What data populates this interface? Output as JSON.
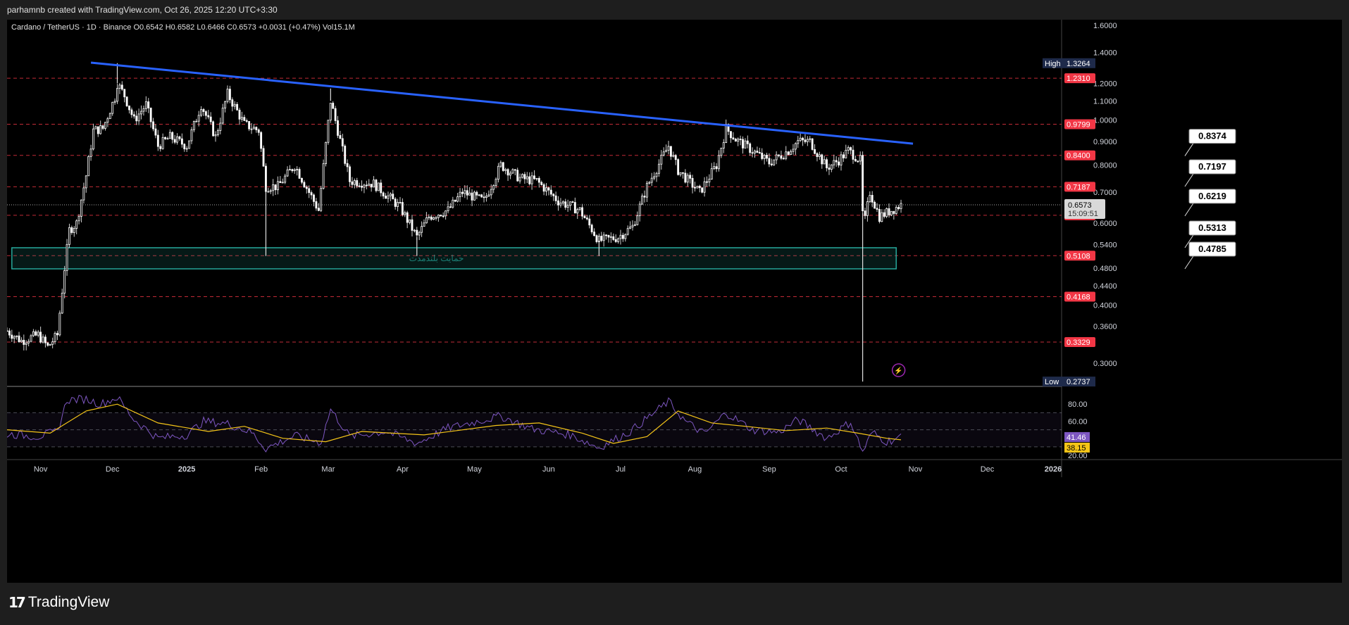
{
  "header": {
    "attribution": "parhamnb created with TradingView.com, Oct 26, 2025 12:20 UTC+3:30"
  },
  "legend": {
    "text": "Cardano / TetherUS · 1D · Binance  O0.6542  H0.6582  L0.6466  C0.6573  +0.0031 (+0.47%)  Vol15.1M"
  },
  "footer": {
    "brand": "TradingView",
    "logo_glyph": "17"
  },
  "zone_label": "حمایت بلندمدت",
  "colors": {
    "up": "#ffffff",
    "down": "#ffffff",
    "trendline": "#2962ff",
    "level": "#f23645",
    "zone": "#26a69a",
    "rsi": "#7e57c2",
    "rsi_ma": "#f5c518",
    "grid_axis": "#d1d4dc"
  },
  "chart_data": [
    {
      "type": "candlestick",
      "title": "Cardano / TetherUS · 1D · Binance",
      "ohlc_last": {
        "open": 0.6542,
        "high": 0.6582,
        "low": 0.6466,
        "close": 0.6573,
        "change": "+0.0031 (+0.47%)",
        "volume": "15.1M"
      },
      "x_ticks": [
        "Nov",
        "Dec",
        "2025",
        "Feb",
        "Mar",
        "Apr",
        "May",
        "Jun",
        "Jul",
        "Aug",
        "Sep",
        "Oct",
        "Nov",
        "Dec",
        "2026"
      ],
      "x_range": [
        "2024-10-18",
        "2026-01-01"
      ],
      "y_scale": "log",
      "y_ticks": [
        "1.6000",
        "1.4000",
        "1.2000",
        "1.1000",
        "1.0000",
        "0.9000",
        "0.8000",
        "0.7000",
        "0.6000",
        "0.5400",
        "0.4800",
        "0.4400",
        "0.4000",
        "0.3600",
        "0.3000"
      ],
      "ylim": [
        0.27,
        1.6
      ],
      "high_label": {
        "text": "High",
        "value": "1.3264"
      },
      "low_label": {
        "text": "Low",
        "value": "0.2737"
      },
      "price_label": {
        "value": "0.6573",
        "countdown": "15:09:51"
      },
      "horizontal_levels": [
        "1.2310",
        "0.9799",
        "0.8400",
        "0.7187",
        "0.6239",
        "0.5108",
        "0.4168",
        "0.3329"
      ],
      "callouts": [
        "0.8374",
        "0.7197",
        "0.6219",
        "0.5313",
        "0.4785"
      ],
      "trendline": {
        "from": {
          "date": "2024-11-22",
          "price": 1.33
        },
        "to": {
          "date": "2025-10-31",
          "price": 0.89
        }
      },
      "support_zone": {
        "from_date": "2024-10-20",
        "to_date": "2025-10-24",
        "upper": 0.5313,
        "lower": 0.4785
      },
      "price_path": [
        [
          "2024-10-18",
          0.352
        ],
        [
          "2024-10-24",
          0.335
        ],
        [
          "2024-10-31",
          0.345
        ],
        [
          "2024-11-04",
          0.325
        ],
        [
          "2024-11-08",
          0.345
        ],
        [
          "2024-11-11",
          0.48
        ],
        [
          "2024-11-13",
          0.58
        ],
        [
          "2024-11-16",
          0.6
        ],
        [
          "2024-11-20",
          0.76
        ],
        [
          "2024-11-23",
          0.95
        ],
        [
          "2024-11-27",
          0.96
        ],
        [
          "2024-12-02",
          1.12
        ],
        [
          "2024-12-03",
          1.2
        ],
        [
          "2024-12-06",
          1.13
        ],
        [
          "2024-12-10",
          1.0
        ],
        [
          "2024-12-15",
          1.08
        ],
        [
          "2024-12-20",
          0.88
        ],
        [
          "2024-12-25",
          0.92
        ],
        [
          "2025-01-01",
          0.88
        ],
        [
          "2025-01-07",
          1.08
        ],
        [
          "2025-01-13",
          0.92
        ],
        [
          "2025-01-18",
          1.14
        ],
        [
          "2025-01-25",
          0.98
        ],
        [
          "2025-01-31",
          0.95
        ],
        [
          "2025-02-03",
          0.72
        ],
        [
          "2025-02-08",
          0.72
        ],
        [
          "2025-02-15",
          0.8
        ],
        [
          "2025-02-25",
          0.64
        ],
        [
          "2025-03-02",
          1.1
        ],
        [
          "2025-03-05",
          0.95
        ],
        [
          "2025-03-10",
          0.74
        ],
        [
          "2025-03-20",
          0.73
        ],
        [
          "2025-03-31",
          0.65
        ],
        [
          "2025-04-07",
          0.56
        ],
        [
          "2025-04-12",
          0.62
        ],
        [
          "2025-04-20",
          0.64
        ],
        [
          "2025-04-26",
          0.7
        ],
        [
          "2025-05-05",
          0.67
        ],
        [
          "2025-05-12",
          0.8
        ],
        [
          "2025-05-20",
          0.75
        ],
        [
          "2025-05-27",
          0.74
        ],
        [
          "2025-06-05",
          0.67
        ],
        [
          "2025-06-14",
          0.64
        ],
        [
          "2025-06-22",
          0.55
        ],
        [
          "2025-06-30",
          0.56
        ],
        [
          "2025-07-06",
          0.59
        ],
        [
          "2025-07-12",
          0.72
        ],
        [
          "2025-07-21",
          0.88
        ],
        [
          "2025-07-25",
          0.78
        ],
        [
          "2025-08-03",
          0.7
        ],
        [
          "2025-08-10",
          0.8
        ],
        [
          "2025-08-14",
          0.96
        ],
        [
          "2025-08-18",
          0.91
        ],
        [
          "2025-08-25",
          0.86
        ],
        [
          "2025-09-01",
          0.81
        ],
        [
          "2025-09-09",
          0.86
        ],
        [
          "2025-09-13",
          0.9
        ],
        [
          "2025-09-18",
          0.9
        ],
        [
          "2025-09-25",
          0.79
        ],
        [
          "2025-09-30",
          0.82
        ],
        [
          "2025-10-04",
          0.86
        ],
        [
          "2025-10-09",
          0.82
        ],
        [
          "2025-10-10",
          0.63
        ],
        [
          "2025-10-11",
          0.61
        ],
        [
          "2025-10-13",
          0.7
        ],
        [
          "2025-10-17",
          0.62
        ],
        [
          "2025-10-22",
          0.64
        ],
        [
          "2025-10-26",
          0.6573
        ]
      ],
      "wick_extremes": [
        {
          "date": "2024-12-03",
          "high": 1.3264
        },
        {
          "date": "2025-03-02",
          "high": 1.17
        },
        {
          "date": "2025-02-03",
          "low": 0.51
        },
        {
          "date": "2025-04-07",
          "low": 0.51
        },
        {
          "date": "2025-06-22",
          "low": 0.51
        },
        {
          "date": "2025-10-10",
          "low": 0.2737
        }
      ]
    },
    {
      "type": "line",
      "title": "RSI",
      "y_ticks": [
        "80.00",
        "60.00",
        "20.00"
      ],
      "ylim": [
        15,
        100
      ],
      "band": [
        30,
        70
      ],
      "last_values": {
        "rsi": "41.46",
        "ma": "38.15"
      },
      "rsi_path": [
        [
          "2024-10-18",
          45
        ],
        [
          "2024-10-31",
          42
        ],
        [
          "2024-11-08",
          48
        ],
        [
          "2024-11-12",
          85
        ],
        [
          "2024-11-20",
          86
        ],
        [
          "2024-11-26",
          80
        ],
        [
          "2024-12-03",
          88
        ],
        [
          "2024-12-10",
          62
        ],
        [
          "2024-12-20",
          40
        ],
        [
          "2025-01-01",
          44
        ],
        [
          "2025-01-08",
          60
        ],
        [
          "2025-01-18",
          57
        ],
        [
          "2025-01-28",
          47
        ],
        [
          "2025-02-03",
          28
        ],
        [
          "2025-02-15",
          43
        ],
        [
          "2025-02-26",
          35
        ],
        [
          "2025-03-02",
          74
        ],
        [
          "2025-03-10",
          42
        ],
        [
          "2025-03-25",
          48
        ],
        [
          "2025-04-07",
          34
        ],
        [
          "2025-04-20",
          52
        ],
        [
          "2025-05-12",
          66
        ],
        [
          "2025-05-25",
          51
        ],
        [
          "2025-06-10",
          44
        ],
        [
          "2025-06-22",
          29
        ],
        [
          "2025-07-05",
          48
        ],
        [
          "2025-07-21",
          83
        ],
        [
          "2025-07-28",
          60
        ],
        [
          "2025-08-05",
          45
        ],
        [
          "2025-08-14",
          70
        ],
        [
          "2025-08-25",
          50
        ],
        [
          "2025-09-05",
          47
        ],
        [
          "2025-09-13",
          62
        ],
        [
          "2025-09-25",
          40
        ],
        [
          "2025-10-05",
          59
        ],
        [
          "2025-10-10",
          24
        ],
        [
          "2025-10-14",
          47
        ],
        [
          "2025-10-20",
          36
        ],
        [
          "2025-10-26",
          41.46
        ]
      ],
      "ma_path": [
        [
          "2024-10-18",
          50
        ],
        [
          "2024-11-05",
          46
        ],
        [
          "2024-11-20",
          72
        ],
        [
          "2024-12-03",
          80
        ],
        [
          "2024-12-20",
          58
        ],
        [
          "2025-01-10",
          48
        ],
        [
          "2025-01-25",
          54
        ],
        [
          "2025-02-10",
          40
        ],
        [
          "2025-02-28",
          36
        ],
        [
          "2025-03-15",
          48
        ],
        [
          "2025-04-10",
          44
        ],
        [
          "2025-05-10",
          55
        ],
        [
          "2025-05-28",
          58
        ],
        [
          "2025-06-15",
          46
        ],
        [
          "2025-06-28",
          34
        ],
        [
          "2025-07-12",
          42
        ],
        [
          "2025-07-25",
          72
        ],
        [
          "2025-08-08",
          58
        ],
        [
          "2025-08-22",
          54
        ],
        [
          "2025-09-08",
          49
        ],
        [
          "2025-09-25",
          52
        ],
        [
          "2025-10-08",
          46
        ],
        [
          "2025-10-20",
          40
        ],
        [
          "2025-10-26",
          38.15
        ]
      ]
    }
  ]
}
